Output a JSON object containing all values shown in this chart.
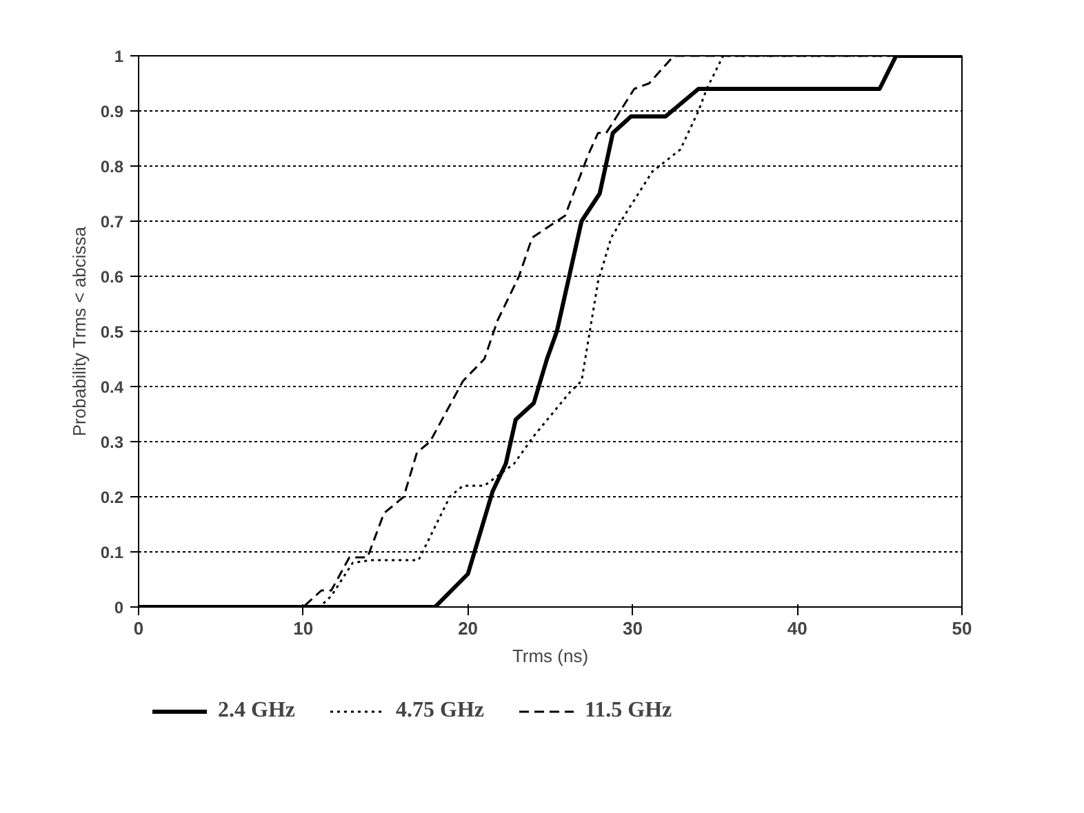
{
  "chart_data": {
    "type": "line",
    "xlabel": "Trms (ns)",
    "ylabel": "Probability Trms < abcissa",
    "xlim": [
      0,
      50
    ],
    "ylim": [
      0,
      1
    ],
    "xticks": [
      0,
      10,
      20,
      30,
      40,
      50
    ],
    "yticks": [
      0,
      0.1,
      0.2,
      0.3,
      0.4,
      0.5,
      0.6,
      0.7,
      0.8,
      0.9,
      1
    ],
    "grid": "y",
    "legend": "bottom",
    "marker": "none",
    "series": [
      {
        "name": "2.4 GHz",
        "color": "#000000",
        "line_style": "solid",
        "x": [
          0,
          18,
          20,
          20.4,
          21.5,
          22.3,
          22.9,
          24,
          24.8,
          25.4,
          26.9,
          28,
          28.8,
          29.9,
          32,
          34,
          45,
          46,
          50
        ],
        "values": [
          0,
          0,
          0.06,
          0.1,
          0.21,
          0.26,
          0.34,
          0.37,
          0.45,
          0.5,
          0.7,
          0.75,
          0.86,
          0.89,
          0.89,
          0.94,
          0.94,
          1,
          1
        ]
      },
      {
        "name": "4.75 GHz",
        "color": "#000000",
        "line_style": "dotted",
        "x": [
          0,
          11,
          11.7,
          13,
          14.1,
          17,
          18.9,
          19.7,
          21,
          22.8,
          24,
          26.2,
          26.9,
          27.9,
          28.7,
          29.5,
          31.2,
          32.9,
          34,
          34.5,
          35.5,
          50
        ],
        "values": [
          0,
          0,
          0.02,
          0.08,
          0.085,
          0.085,
          0.2,
          0.22,
          0.22,
          0.26,
          0.31,
          0.39,
          0.41,
          0.59,
          0.67,
          0.71,
          0.79,
          0.83,
          0.9,
          0.94,
          1,
          1
        ]
      },
      {
        "name": "11.5 GHz",
        "color": "#000000",
        "line_style": "dashed",
        "x": [
          0,
          10,
          11.1,
          11.7,
          12.8,
          13.9,
          14.9,
          16.1,
          16.9,
          17.7,
          19.7,
          21,
          21.8,
          23.1,
          23.9,
          25.9,
          27.3,
          27.9,
          28.4,
          30.1,
          31,
          32.5,
          50
        ],
        "values": [
          0,
          0,
          0.03,
          0.03,
          0.09,
          0.09,
          0.17,
          0.2,
          0.28,
          0.3,
          0.41,
          0.45,
          0.52,
          0.6,
          0.67,
          0.71,
          0.82,
          0.86,
          0.86,
          0.94,
          0.95,
          1,
          1
        ]
      }
    ]
  }
}
